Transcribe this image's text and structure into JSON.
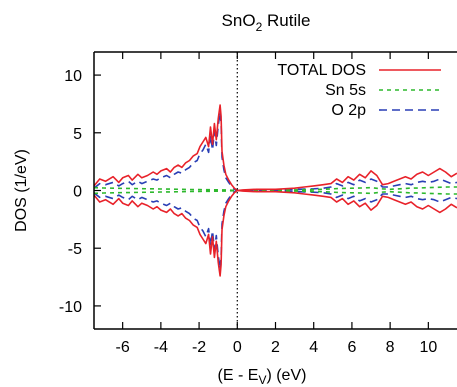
{
  "chart_data": {
    "type": "line",
    "title": "SnO",
    "title_subscript": "2",
    "title_suffix": " Rutile",
    "xlabel_main": "(E - E",
    "xlabel_subscript": "V",
    "xlabel_suffix": ") (eV)",
    "ylabel": "DOS (1/eV)",
    "xlim": [
      -7.5,
      11.5
    ],
    "ylim": [
      -12,
      12
    ],
    "xticks": [
      -6,
      -4,
      -2,
      0,
      2,
      4,
      6,
      8,
      10
    ],
    "xtick_labels": [
      "-6",
      "-4",
      "-2",
      "0",
      "2",
      "4",
      "6",
      "8",
      "10"
    ],
    "yticks": [
      -10,
      -5,
      0,
      5,
      10
    ],
    "ytick_labels": [
      "-10",
      "-5",
      "0",
      "5",
      "10"
    ],
    "grid": false,
    "legend_position": "top-right",
    "fermi_level_x": 0,
    "series": [
      {
        "name": "TOTAL DOS",
        "color": "#e8222a",
        "dash": "solid",
        "x": [
          -7.5,
          -7.2,
          -6.9,
          -6.5,
          -6.2,
          -6.0,
          -5.7,
          -5.5,
          -5.2,
          -5.0,
          -4.7,
          -4.4,
          -4.2,
          -4.0,
          -3.7,
          -3.5,
          -3.3,
          -3.1,
          -2.9,
          -2.7,
          -2.5,
          -2.3,
          -2.1,
          -1.95,
          -1.8,
          -1.65,
          -1.5,
          -1.4,
          -1.3,
          -1.2,
          -1.1,
          -1.0,
          -0.9,
          -0.85,
          -0.8,
          -0.7,
          -0.6,
          -0.45,
          -0.3,
          -0.15,
          0.0,
          0.3,
          1.0,
          2.0,
          3.0,
          3.5,
          4.0,
          4.5,
          4.9,
          5.2,
          5.5,
          5.8,
          6.1,
          6.4,
          6.7,
          7.0,
          7.3,
          7.6,
          7.9,
          8.2,
          8.5,
          8.8,
          9.1,
          9.4,
          9.7,
          10.0,
          10.3,
          10.6,
          10.9,
          11.2,
          11.5
        ],
        "y": [
          0.4,
          1.0,
          0.8,
          1.2,
          0.7,
          1.1,
          1.3,
          0.9,
          1.4,
          1.1,
          1.3,
          1.6,
          1.4,
          1.7,
          1.9,
          1.6,
          2.0,
          2.2,
          2.0,
          2.4,
          2.6,
          3.0,
          3.2,
          3.8,
          4.2,
          4.6,
          3.8,
          5.5,
          4.0,
          5.8,
          4.4,
          6.2,
          7.4,
          6.4,
          3.4,
          2.2,
          1.4,
          0.9,
          0.5,
          0.2,
          0.0,
          0.05,
          0.1,
          0.1,
          0.2,
          0.3,
          0.4,
          0.5,
          0.6,
          1.0,
          0.7,
          1.2,
          0.9,
          1.4,
          1.1,
          1.7,
          1.3,
          0.5,
          0.6,
          0.8,
          1.0,
          1.2,
          1.0,
          1.4,
          1.6,
          1.3,
          1.6,
          1.9,
          1.6,
          1.2,
          1.5
        ]
      },
      {
        "name": "Sn 5s",
        "color": "#2db82d",
        "dash": "4,4",
        "x": [
          -7.5,
          -7.0,
          -6.5,
          -6.0,
          -5.5,
          -5.0,
          -4.5,
          -4.0,
          -3.5,
          -3.0,
          -2.5,
          -2.0,
          -1.5,
          -1.0,
          -0.5,
          0.0,
          1.0,
          2.0,
          3.0,
          4.0,
          4.5,
          5.0,
          5.5,
          6.0,
          6.5,
          7.0,
          7.5,
          8.0,
          8.5,
          9.0,
          9.5,
          10.0,
          10.5,
          11.0,
          11.5
        ],
        "y": [
          0.25,
          0.22,
          0.2,
          0.18,
          0.17,
          0.16,
          0.15,
          0.13,
          0.12,
          0.1,
          0.09,
          0.08,
          0.07,
          0.06,
          0.04,
          0.0,
          0.02,
          0.03,
          0.05,
          0.08,
          0.1,
          0.15,
          0.18,
          0.2,
          0.22,
          0.25,
          0.15,
          0.1,
          0.15,
          0.2,
          0.22,
          0.25,
          0.28,
          0.3,
          0.3
        ]
      },
      {
        "name": "O 2p",
        "color": "#2a3fb5",
        "dash": "8,5",
        "x": [
          -7.5,
          -7.2,
          -6.9,
          -6.5,
          -6.2,
          -6.0,
          -5.7,
          -5.5,
          -5.2,
          -5.0,
          -4.7,
          -4.4,
          -4.2,
          -4.0,
          -3.7,
          -3.5,
          -3.3,
          -3.1,
          -2.9,
          -2.7,
          -2.5,
          -2.3,
          -2.1,
          -1.95,
          -1.8,
          -1.65,
          -1.5,
          -1.4,
          -1.3,
          -1.2,
          -1.1,
          -1.0,
          -0.9,
          -0.85,
          -0.8,
          -0.7,
          -0.6,
          -0.45,
          -0.3,
          -0.15,
          0.0,
          0.3,
          1.0,
          2.0,
          3.0,
          3.5,
          4.0,
          4.5,
          4.9,
          5.2,
          5.5,
          5.8,
          6.1,
          6.4,
          6.7,
          7.0,
          7.3,
          7.6,
          7.9,
          8.2,
          8.5,
          8.8,
          9.1,
          9.4,
          9.7,
          10.0,
          10.3,
          10.6,
          10.9,
          11.2,
          11.5
        ],
        "y": [
          0.2,
          0.6,
          0.5,
          0.7,
          0.4,
          0.6,
          0.8,
          0.5,
          0.8,
          0.6,
          0.8,
          1.0,
          0.9,
          1.1,
          1.3,
          1.1,
          1.4,
          1.6,
          1.5,
          1.8,
          2.0,
          2.4,
          2.6,
          3.2,
          3.5,
          4.0,
          3.3,
          4.8,
          3.5,
          5.1,
          3.9,
          5.6,
          6.8,
          5.8,
          2.9,
          1.8,
          1.1,
          0.7,
          0.35,
          0.1,
          0.0,
          0.02,
          0.03,
          0.05,
          0.08,
          0.12,
          0.15,
          0.2,
          0.3,
          0.6,
          0.4,
          0.7,
          0.5,
          0.9,
          0.7,
          1.0,
          0.8,
          0.3,
          0.3,
          0.4,
          0.5,
          0.6,
          0.5,
          0.7,
          0.8,
          0.7,
          0.8,
          1.0,
          0.8,
          0.6,
          0.7
        ]
      }
    ]
  }
}
